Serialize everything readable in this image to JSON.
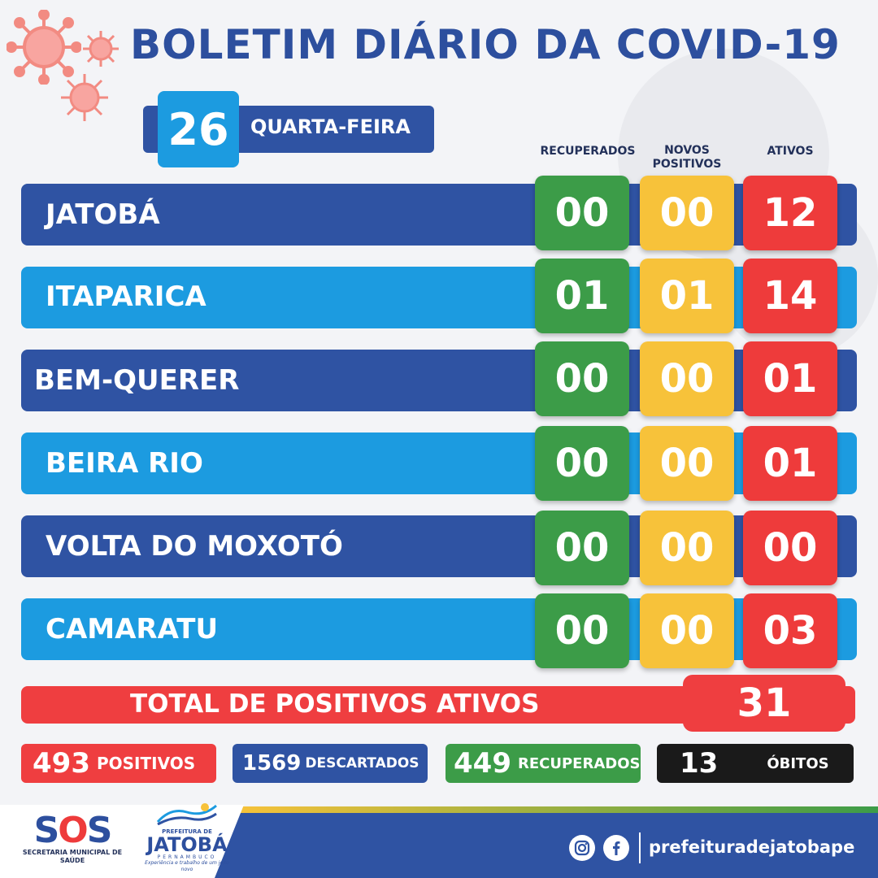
{
  "title": "BOLETIM DIÁRIO DA COVID-19",
  "date": {
    "day_number": "26",
    "weekday": "QUARTA-FEIRA"
  },
  "columns": {
    "recuperados": "RECUPERADOS",
    "novos_positivos": "NOVOS POSITIVOS",
    "ativos": "ATIVOS"
  },
  "rows": [
    {
      "name": "JATOBÁ",
      "recuperados": "00",
      "novos_positivos": "00",
      "ativos": "12"
    },
    {
      "name": "ITAPARICA",
      "recuperados": "01",
      "novos_positivos": "01",
      "ativos": "14"
    },
    {
      "name": "BEM-QUERER",
      "recuperados": "00",
      "novos_positivos": "00",
      "ativos": "01"
    },
    {
      "name": "BEIRA RIO",
      "recuperados": "00",
      "novos_positivos": "00",
      "ativos": "01"
    },
    {
      "name": "VOLTA DO MOXOTÓ",
      "recuperados": "00",
      "novos_positivos": "00",
      "ativos": "00"
    },
    {
      "name": "CAMARATU",
      "recuperados": "00",
      "novos_positivos": "00",
      "ativos": "03"
    }
  ],
  "total": {
    "label": "TOTAL DE POSITIVOS ATIVOS",
    "value": "31"
  },
  "stats": {
    "positivos": {
      "value": "493",
      "label": "POSITIVOS"
    },
    "descartados": {
      "value": "1569",
      "label": "DESCARTADOS"
    },
    "recuperados": {
      "value": "449",
      "label": "RECUPERADOS"
    },
    "obitos": {
      "value": "13",
      "label": "ÓBITOS"
    }
  },
  "footer": {
    "sos_logo": "SOS",
    "sos_subtitle": "SECRETARIA MUNICIPAL DE SAÚDE",
    "prefeitura_small": "PREFEITURA DE",
    "prefeitura_name": "JATOBÁ",
    "prefeitura_state": "PERNAMBUCO",
    "prefeitura_slogan": "Experiência e trabalho de um jeito novo",
    "social_icons": [
      "instagram-icon",
      "facebook-icon"
    ],
    "handle": "prefeituradejatobape"
  },
  "colors": {
    "dark_blue": "#2f53a3",
    "light_blue": "#1c9be0",
    "green": "#3c9c48",
    "yellow": "#f7c23a",
    "red": "#ee3b3b",
    "black": "#1a1a1a"
  }
}
